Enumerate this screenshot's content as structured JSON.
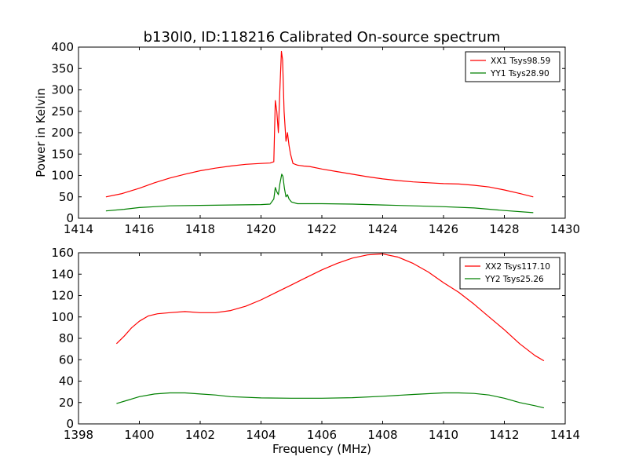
{
  "title": "b130l0, ID:118216 Calibrated On-source spectrum",
  "chart_data": [
    {
      "type": "line",
      "xlim": [
        1414,
        1430
      ],
      "ylim": [
        0,
        400
      ],
      "xticks": [
        "1414",
        "1416",
        "1418",
        "1420",
        "1422",
        "1424",
        "1426",
        "1428",
        "1430"
      ],
      "yticks": [
        "0",
        "50",
        "100",
        "150",
        "200",
        "250",
        "300",
        "350",
        "400"
      ],
      "xlabel": "",
      "ylabel": "Power in Kelvin",
      "grid": false,
      "legend_position": "top-right",
      "series": [
        {
          "name": "XX1 Tsys98.59",
          "color": "#ff0000",
          "x": [
            1414.9,
            1415.4,
            1416.0,
            1416.5,
            1417.0,
            1417.5,
            1418.0,
            1418.5,
            1419.0,
            1419.5,
            1420.0,
            1420.3,
            1420.42,
            1420.47,
            1420.52,
            1420.57,
            1420.62,
            1420.67,
            1420.71,
            1420.76,
            1420.82,
            1420.87,
            1420.92,
            1420.97,
            1421.05,
            1421.2,
            1421.4,
            1421.6,
            1422.0,
            1422.5,
            1423.0,
            1423.5,
            1424.0,
            1424.5,
            1425.0,
            1425.5,
            1426.0,
            1426.5,
            1427.0,
            1427.5,
            1428.0,
            1428.5,
            1428.95
          ],
          "values": [
            50,
            57,
            70,
            83,
            94,
            103,
            111,
            117,
            122,
            126,
            128,
            129,
            132,
            275,
            250,
            200,
            300,
            390,
            370,
            250,
            180,
            200,
            170,
            150,
            128,
            124,
            122,
            121,
            115,
            109,
            103,
            97,
            92,
            88,
            85,
            83,
            81,
            80,
            77,
            73,
            66,
            58,
            50
          ]
        },
        {
          "name": "YY1 Tsys28.90",
          "color": "#008000",
          "x": [
            1414.9,
            1415.5,
            1416.0,
            1416.5,
            1417.0,
            1418.0,
            1419.0,
            1420.0,
            1420.3,
            1420.42,
            1420.47,
            1420.52,
            1420.57,
            1420.62,
            1420.68,
            1420.72,
            1420.77,
            1420.82,
            1420.87,
            1420.92,
            1421.0,
            1421.2,
            1421.5,
            1422.0,
            1423.0,
            1424.0,
            1425.0,
            1426.0,
            1427.0,
            1428.0,
            1428.95
          ],
          "values": [
            17,
            21,
            25,
            27,
            29,
            30,
            31,
            32,
            33,
            45,
            72,
            62,
            55,
            80,
            103,
            98,
            70,
            50,
            55,
            45,
            38,
            34,
            34,
            34,
            33,
            31,
            29,
            27,
            24,
            18,
            13
          ]
        }
      ]
    },
    {
      "type": "line",
      "xlim": [
        1398,
        1414
      ],
      "ylim": [
        0,
        160
      ],
      "xticks": [
        "1398",
        "1400",
        "1402",
        "1404",
        "1406",
        "1408",
        "1410",
        "1412",
        "1414"
      ],
      "yticks": [
        "0",
        "20",
        "40",
        "60",
        "80",
        "100",
        "120",
        "140",
        "160"
      ],
      "xlabel": "Frequency (MHz)",
      "ylabel": "",
      "grid": false,
      "legend_position": "top-right",
      "series": [
        {
          "name": "XX2 Tsys117.10",
          "color": "#ff0000",
          "x": [
            1399.25,
            1399.5,
            1399.75,
            1400.0,
            1400.3,
            1400.6,
            1401.0,
            1401.5,
            1402.0,
            1402.5,
            1403.0,
            1403.5,
            1404.0,
            1404.5,
            1405.0,
            1405.5,
            1406.0,
            1406.5,
            1407.0,
            1407.5,
            1408.0,
            1408.5,
            1409.0,
            1409.5,
            1410.0,
            1410.5,
            1411.0,
            1411.5,
            1412.0,
            1412.5,
            1413.0,
            1413.3
          ],
          "values": [
            75,
            82,
            90,
            96,
            101,
            103,
            104,
            105,
            104,
            104,
            106,
            110,
            116,
            123,
            130,
            137,
            144,
            150,
            155,
            158,
            159,
            156,
            150,
            142,
            132,
            123,
            112,
            100,
            88,
            75,
            64,
            59
          ]
        },
        {
          "name": "YY2 Tsys25.26",
          "color": "#008000",
          "x": [
            1399.25,
            1399.6,
            1400.0,
            1400.5,
            1401.0,
            1401.5,
            1402.0,
            1402.5,
            1403.0,
            1404.0,
            1405.0,
            1406.0,
            1407.0,
            1408.0,
            1409.0,
            1410.0,
            1410.5,
            1411.0,
            1411.5,
            1412.0,
            1412.5,
            1413.0,
            1413.3
          ],
          "values": [
            19,
            22,
            25.5,
            28,
            29,
            29,
            28,
            27,
            25.5,
            24.3,
            24,
            24,
            24.5,
            25.8,
            27.5,
            29,
            29,
            28.5,
            27,
            24,
            20,
            17,
            15
          ]
        }
      ]
    }
  ]
}
